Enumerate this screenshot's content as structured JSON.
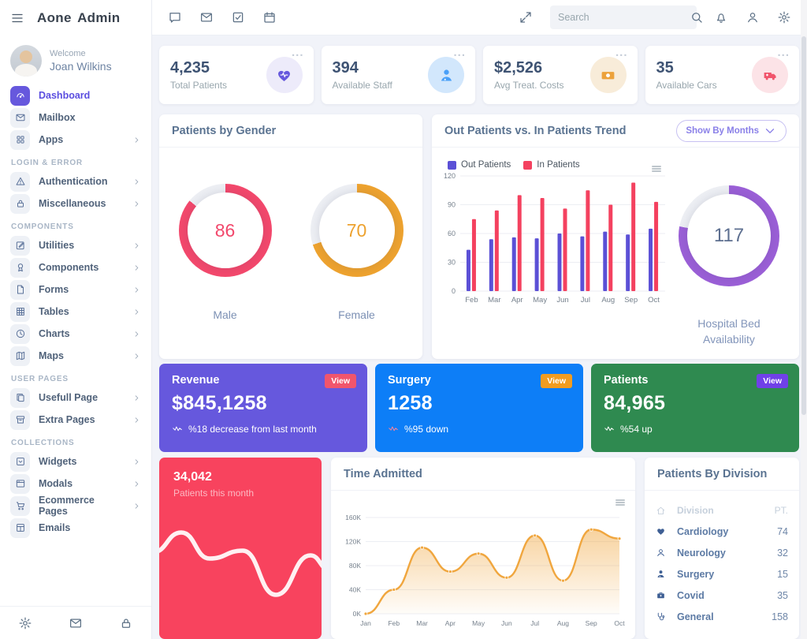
{
  "brand": {
    "title": "Aone Admin"
  },
  "topbar": {
    "search_placeholder": "Search"
  },
  "profile": {
    "welcome": "Welcome",
    "name": "Joan Wilkins"
  },
  "misc": {
    "card_menu": "..."
  },
  "sidebar": {
    "items": [
      {
        "type": "item",
        "icon": "speedometer",
        "label": "Dashboard",
        "active": true
      },
      {
        "type": "item",
        "icon": "envelope",
        "label": "Mailbox"
      },
      {
        "type": "item",
        "icon": "grid",
        "label": "Apps",
        "arrow": true
      },
      {
        "type": "label",
        "label": "LOGIN & ERROR"
      },
      {
        "type": "item",
        "icon": "warning",
        "label": "Authentication",
        "arrow": true
      },
      {
        "type": "item",
        "icon": "lock",
        "label": "Miscellaneous",
        "arrow": true
      },
      {
        "type": "label",
        "label": "COMPONENTS"
      },
      {
        "type": "item",
        "icon": "edit",
        "label": "Utilities",
        "arrow": true
      },
      {
        "type": "item",
        "icon": "award",
        "label": "Components",
        "arrow": true
      },
      {
        "type": "item",
        "icon": "file",
        "label": "Forms",
        "arrow": true
      },
      {
        "type": "item",
        "icon": "table",
        "label": "Tables",
        "arrow": true
      },
      {
        "type": "item",
        "icon": "clock",
        "label": "Charts",
        "arrow": true
      },
      {
        "type": "item",
        "icon": "map",
        "label": "Maps",
        "arrow": true
      },
      {
        "type": "label",
        "label": "USER PAGES"
      },
      {
        "type": "item",
        "icon": "copy",
        "label": "Usefull Page",
        "arrow": true
      },
      {
        "type": "item",
        "icon": "archive",
        "label": "Extra Pages",
        "arrow": true
      },
      {
        "type": "label",
        "label": "COLLECTIONS"
      },
      {
        "type": "item",
        "icon": "widget",
        "label": "Widgets",
        "arrow": true
      },
      {
        "type": "item",
        "icon": "window",
        "label": "Modals",
        "arrow": true
      },
      {
        "type": "item",
        "icon": "cart",
        "label": "Ecommerce Pages",
        "arrow": true
      },
      {
        "type": "item",
        "icon": "mailtable",
        "label": "Emails"
      }
    ]
  },
  "stats": [
    {
      "value": "4,235",
      "label": "Total Patients",
      "icon": "heartpulse",
      "color": "#6658dd",
      "bg": "#edebfa"
    },
    {
      "value": "394",
      "label": "Available Staff",
      "icon": "staff",
      "color": "#4aa0f8",
      "bg": "#d2e7fc"
    },
    {
      "value": "$2,526",
      "label": "Avg Treat. Costs",
      "icon": "money",
      "color": "#eca23b",
      "bg": "#f8ecd9"
    },
    {
      "value": "35",
      "label": "Available Cars",
      "icon": "ambulance",
      "color": "#f1556c",
      "bg": "#fce3e7"
    }
  ],
  "gender_card": {
    "title": "Patients by Gender",
    "gauges": [
      {
        "label": "Male",
        "value": "86",
        "pct": 0.86,
        "color": "#f2486c"
      },
      {
        "label": "Female",
        "value": "70",
        "pct": 0.7,
        "color": "#eda22f"
      }
    ]
  },
  "trend_card": {
    "title": "Out Patients vs. In Patients Trend",
    "filter_label": "Show By Months",
    "chart_data": {
      "type": "bar",
      "categories": [
        "Feb",
        "Mar",
        "Apr",
        "May",
        "Jun",
        "Jul",
        "Aug",
        "Sep",
        "Oct"
      ],
      "yticks": [
        0,
        30,
        60,
        90,
        120
      ],
      "ylim": [
        0,
        120
      ],
      "series": [
        {
          "name": "Out Patients",
          "color": "#5b50d6",
          "values": [
            43,
            54,
            56,
            55,
            60,
            57,
            62,
            59,
            65
          ]
        },
        {
          "name": "In Patients",
          "color": "#f4415f",
          "values": [
            75,
            84,
            100,
            97,
            86,
            105,
            90,
            113,
            93
          ]
        }
      ]
    },
    "bed_gauge": {
      "value": "117",
      "pct": 0.78,
      "color": "#9a5fd6",
      "label": "Hospital Bed Availability"
    }
  },
  "metric_cards": [
    {
      "title": "Revenue",
      "value": "$845,1258",
      "badge": "View",
      "badge_bg": "#f1556c",
      "bg": "#6658dd",
      "note": "%18 decrease from last month",
      "note_icon_color": "#ffffff"
    },
    {
      "title": "Surgery",
      "value": "1258",
      "badge": "View",
      "badge_bg": "#f29c1f",
      "bg": "#0d7ef7",
      "note": "%95 down",
      "note_icon_color": "#ff8396"
    },
    {
      "title": "Patients",
      "value": "84,965",
      "badge": "View",
      "badge_bg": "#7040e8",
      "bg": "#2f8a50",
      "note": "%54 up",
      "note_icon_color": "#ffffff"
    }
  ],
  "red_card": {
    "value": "34,042",
    "label": "Patients this month",
    "bg": "#f8435e"
  },
  "time_card": {
    "title": "Time Admitted",
    "chart_data": {
      "type": "area",
      "color": "#f0a63e",
      "x": [
        "Jan",
        "Feb",
        "Mar",
        "Apr",
        "May",
        "Jun",
        "Jul",
        "Aug",
        "Sep",
        "Oct"
      ],
      "values_k": [
        0,
        40,
        110,
        70,
        100,
        60,
        130,
        55,
        140,
        125
      ],
      "ytick_labels": [
        "0K",
        "40K",
        "80K",
        "120K",
        "160K"
      ],
      "ylim_k": [
        0,
        160
      ]
    }
  },
  "division_card": {
    "title": "Patients By Division",
    "columns": {
      "division": "Division",
      "pt": "PT."
    },
    "rows": [
      {
        "icon": "heart",
        "name": "Cardiology",
        "pt": "74"
      },
      {
        "icon": "user",
        "name": "Neurology",
        "pt": "32"
      },
      {
        "icon": "doctor",
        "name": "Surgery",
        "pt": "15"
      },
      {
        "icon": "medkit",
        "name": "Covid",
        "pt": "35"
      },
      {
        "icon": "stethoscope",
        "name": "General",
        "pt": "158"
      }
    ]
  }
}
